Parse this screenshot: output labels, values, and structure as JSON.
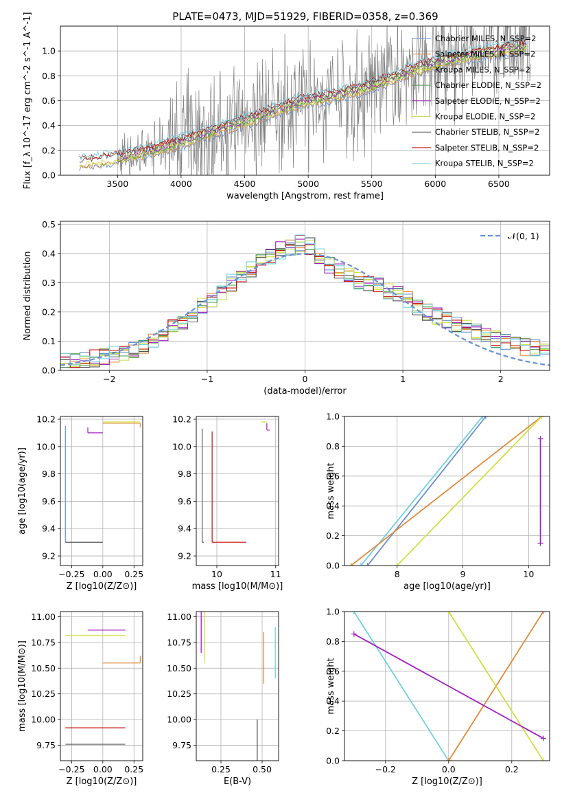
{
  "figure": {
    "title": "PLATE=0473, MJD=51929, FIBERID=0358, z=0.369"
  },
  "models": [
    {
      "name": "Chabrier MILES",
      "color": "#6a8fd0"
    },
    {
      "name": "Salpeter MILES",
      "color": "#e08a3a"
    },
    {
      "name": "Kroupa MILES",
      "color": "#d0e040"
    },
    {
      "name": "Chabrier ELODIE",
      "color": "#4a9a4a"
    },
    {
      "name": "Salpeter ELODIE",
      "color": "#a020c0"
    },
    {
      "name": "Kroupa ELODIE",
      "color": "#c8e060"
    },
    {
      "name": "Chabrier STELIB",
      "color": "#555555"
    },
    {
      "name": "Salpeter STELIB",
      "color": "#c81010"
    },
    {
      "name": "Kroupa STELIB",
      "color": "#70d0e0"
    }
  ],
  "chart_data": [
    {
      "id": "spectrum",
      "type": "line",
      "title": "PLATE=0473, MJD=51929, FIBERID=0358, z=0.369",
      "xlabel": "wavelength [Angstrom, rest frame]",
      "ylabel": "Flux [f_λ 10^-17 erg cm^-2 s^-1 A^-1]",
      "xlim": [
        3050,
        6900
      ],
      "ylim": [
        0,
        1.2
      ],
      "xticks": [
        "3500",
        "4000",
        "4500",
        "5000",
        "5500",
        "6000",
        "6500"
      ],
      "yticks": [
        "0.0",
        "0.2",
        "0.4",
        "0.6",
        "0.8",
        "1.0"
      ],
      "legend": [
        "Chabrier MILES, N_SSP=2",
        "Salpeter MILES, N_SSP=2",
        "Kroupa MILES, N_SSP=2",
        "Chabrier ELODIE, N_SSP=2",
        "Salpeter ELODIE, N_SSP=2",
        "Kroupa ELODIE, N_SSP=2",
        "Chabrier STELIB, N_SSP=2",
        "Salpeter STELIB, N_SSP=2",
        "Kroupa STELIB, N_SSP=2"
      ],
      "legend_position": "top-right",
      "data_wavelength_range": [
        3500,
        6750
      ],
      "model_continuum": {
        "x": [
          3200,
          3500,
          3700,
          4000,
          4300,
          4600,
          4900,
          5200,
          5500,
          5800,
          6100,
          6400,
          6700
        ],
        "y": [
          0.1,
          0.14,
          0.18,
          0.27,
          0.37,
          0.47,
          0.58,
          0.64,
          0.72,
          0.84,
          0.93,
          0.99,
          1.04
        ]
      }
    },
    {
      "id": "residuals",
      "type": "line",
      "xlabel": "(data-model)/error",
      "ylabel": "Normed distribution",
      "xlim": [
        -2.5,
        2.5
      ],
      "ylim": [
        0,
        0.51
      ],
      "xticks": [
        "−2",
        "−1",
        "0",
        "1",
        "2"
      ],
      "yticks": [
        "0.0",
        "0.1",
        "0.2",
        "0.3",
        "0.4",
        "0.5"
      ],
      "legend": [
        "𝒩(0, 1)"
      ],
      "legend_position": "top-right",
      "grid": true,
      "histogram_profile": {
        "x": [
          -2.5,
          -2.25,
          -2.0,
          -1.75,
          -1.5,
          -1.25,
          -1.0,
          -0.75,
          -0.5,
          -0.25,
          0.0,
          0.25,
          0.5,
          0.75,
          1.0,
          1.25,
          1.5,
          1.75,
          2.0,
          2.25,
          2.5
        ],
        "y": [
          0.03,
          0.035,
          0.05,
          0.07,
          0.11,
          0.17,
          0.23,
          0.3,
          0.36,
          0.41,
          0.44,
          0.36,
          0.31,
          0.29,
          0.25,
          0.2,
          0.16,
          0.13,
          0.1,
          0.08,
          0.07
        ]
      }
    },
    {
      "id": "age-vs-Z",
      "type": "scatter",
      "xlabel": "Z [log10(Z/Z⊙)]",
      "ylabel": "age [log10(age/yr)]",
      "xlim": [
        -0.34,
        0.32
      ],
      "ylim": [
        9.13,
        10.22
      ],
      "xticks": [
        "−0.25",
        "0.00",
        "0.25"
      ],
      "yticks": [
        "9.2",
        "9.4",
        "9.6",
        "9.8",
        "10.0",
        "10.2"
      ],
      "series": [
        {
          "name": "Chabrier MILES",
          "x": [
            -0.3,
            0.0
          ],
          "y": [
            9.3,
            10.15
          ]
        },
        {
          "name": "Salpeter MILES",
          "x": [
            0.3,
            0.0
          ],
          "y": [
            10.17,
            10.14
          ]
        },
        {
          "name": "Kroupa MILES",
          "x": [
            0.0,
            0.3
          ],
          "y": [
            10.18,
            10.18
          ]
        },
        {
          "name": "Salpeter ELODIE",
          "x": [
            -0.12,
            0.0
          ],
          "y": [
            10.1,
            10.14
          ]
        },
        {
          "name": "Chabrier STELIB",
          "x": [
            -0.3,
            0.0
          ],
          "y": [
            9.3,
            9.3
          ]
        },
        {
          "name": "Kroupa STELIB",
          "x": [
            -0.3,
            -0.3
          ],
          "y": [
            9.3,
            9.3
          ]
        }
      ]
    },
    {
      "id": "age-vs-mass",
      "type": "scatter",
      "xlabel": "mass [log10(M/M⊙)]",
      "ylabel": "",
      "xlim": [
        9.65,
        11.05
      ],
      "ylim": [
        9.13,
        10.22
      ],
      "xticks": [
        "10",
        "11"
      ],
      "yticks": [
        "9.2",
        "9.4",
        "9.6",
        "9.8",
        "10.0",
        "10.2"
      ],
      "series": [
        {
          "name": "Chabrier STELIB",
          "x": [
            9.75,
            9.78
          ],
          "y": [
            9.3,
            10.13
          ]
        },
        {
          "name": "Salpeter STELIB",
          "x": [
            9.92,
            10.5
          ],
          "y": [
            9.3,
            10.11
          ]
        },
        {
          "name": "Kroupa MILES",
          "x": [
            10.75,
            10.85
          ],
          "y": [
            10.18,
            10.18
          ]
        },
        {
          "name": "Salpeter ELODIE",
          "x": [
            10.85,
            10.9
          ],
          "y": [
            10.12,
            10.17
          ]
        }
      ]
    },
    {
      "id": "weight-vs-age",
      "type": "line",
      "xlabel": "age [log10(age/yr)]",
      "ylabel": "mass weight",
      "xlim": [
        7.2,
        10.32
      ],
      "ylim": [
        0,
        1.0
      ],
      "xticks": [
        "8",
        "9",
        "10"
      ],
      "yticks": [
        "0.0",
        "0.2",
        "0.4",
        "0.6",
        "0.8",
        "1.0"
      ],
      "grid": true,
      "series": [
        {
          "name": "Kroupa STELIB",
          "x": [
            7.45,
            9.3
          ],
          "y": [
            0.0,
            1.0
          ]
        },
        {
          "name": "Chabrier MILES",
          "x": [
            7.55,
            9.35
          ],
          "y": [
            0.0,
            1.0
          ]
        },
        {
          "name": "Salpeter MILES",
          "x": [
            7.3,
            10.2
          ],
          "y": [
            0.0,
            1.0
          ]
        },
        {
          "name": "Kroupa MILES",
          "x": [
            8.0,
            10.2
          ],
          "y": [
            0.0,
            1.0
          ]
        },
        {
          "name": "Salpeter ELODIE",
          "x": [
            10.18,
            10.18
          ],
          "y": [
            0.15,
            0.85
          ]
        }
      ]
    },
    {
      "id": "mass-vs-Z",
      "type": "scatter",
      "xlabel": "Z [log10(Z/Z⊙)]",
      "ylabel": "mass [log10(M/M⊙)]",
      "xlim": [
        -0.34,
        0.32
      ],
      "ylim": [
        9.6,
        11.05
      ],
      "xticks": [
        "−0.25",
        "0.00",
        "0.25"
      ],
      "yticks": [
        "9.75",
        "10.00",
        "10.25",
        "10.50",
        "10.75",
        "11.00"
      ],
      "series": [
        {
          "name": "Salpeter ELODIE",
          "x": [
            -0.12,
            0.18
          ],
          "y": [
            10.87,
            10.87
          ]
        },
        {
          "name": "Kroupa MILES",
          "x": [
            -0.3,
            0.18
          ],
          "y": [
            10.82,
            10.82
          ]
        },
        {
          "name": "Salpeter STELIB",
          "x": [
            -0.3,
            0.18
          ],
          "y": [
            9.92,
            9.92
          ]
        },
        {
          "name": "Chabrier STELIB",
          "x": [
            -0.3,
            0.18
          ],
          "y": [
            9.76,
            9.76
          ]
        },
        {
          "name": "Salpeter MILES",
          "x": [
            0.3,
            0.0
          ],
          "y": [
            10.55,
            10.62
          ]
        }
      ]
    },
    {
      "id": "mass-vs-EBV",
      "type": "scatter",
      "xlabel": "E(B-V)",
      "ylabel": "",
      "xlim": [
        0.1,
        0.6
      ],
      "ylim": [
        9.6,
        11.05
      ],
      "xticks": [
        "0.25",
        "0.50"
      ],
      "yticks": [
        "9.75",
        "10.00",
        "10.25",
        "10.50",
        "10.75",
        "11.00"
      ],
      "series": [
        {
          "name": "Salpeter ELODIE",
          "x": [
            0.13
          ],
          "y": [
            10.85
          ]
        },
        {
          "name": "Kroupa MILES",
          "x": [
            0.15
          ],
          "y": [
            10.75
          ]
        },
        {
          "name": "Chabrier STELIB",
          "x": [
            0.47
          ],
          "y": [
            9.7
          ]
        },
        {
          "name": "Salpeter MILES",
          "x": [
            0.51
          ],
          "y": [
            10.55
          ]
        },
        {
          "name": "Kroupa STELIB",
          "x": [
            0.58
          ],
          "y": [
            10.6
          ]
        }
      ]
    },
    {
      "id": "weight-vs-Z",
      "type": "line",
      "xlabel": "Z [log10(Z/Z⊙)]",
      "ylabel": "mass weight",
      "xlim": [
        -0.33,
        0.32
      ],
      "ylim": [
        0,
        1.0
      ],
      "xticks": [
        "−0.2",
        "0.0",
        "0.2"
      ],
      "yticks": [
        "0.0",
        "0.2",
        "0.4",
        "0.6",
        "0.8",
        "1.0"
      ],
      "grid": true,
      "series": [
        {
          "name": "Kroupa STELIB",
          "x": [
            -0.3,
            0.0
          ],
          "y": [
            1.0,
            0.0
          ]
        },
        {
          "name": "Salpeter MILES",
          "x": [
            0.0,
            0.3
          ],
          "y": [
            0.0,
            1.0
          ]
        },
        {
          "name": "Kroupa MILES",
          "x": [
            0.0,
            0.3
          ],
          "y": [
            1.0,
            0.0
          ]
        },
        {
          "name": "Salpeter ELODIE",
          "x": [
            -0.3,
            0.3
          ],
          "y": [
            0.85,
            0.15
          ]
        }
      ]
    }
  ]
}
